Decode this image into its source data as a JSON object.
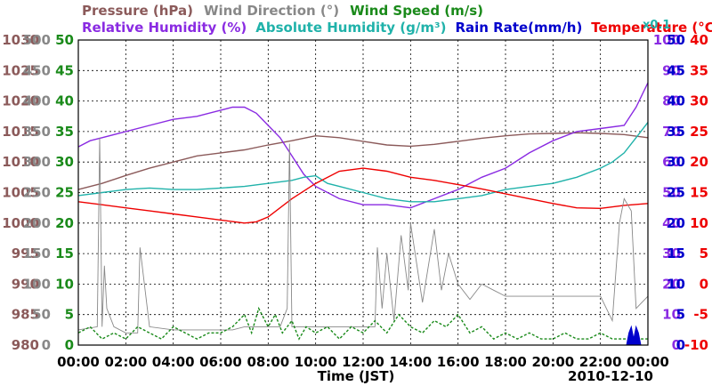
{
  "chart_data": {
    "type": "line",
    "xlabel": "Time (JST)",
    "date_label": "2010-12-10",
    "x_ticks": [
      "00:00",
      "02:00",
      "04:00",
      "06:00",
      "08:00",
      "10:00",
      "12:00",
      "14:00",
      "16:00",
      "18:00",
      "20:00",
      "22:00",
      "00:00"
    ],
    "grid": true,
    "axes": [
      {
        "name": "Pressure (hPa)",
        "side": "left",
        "color": "#8B5A5A",
        "range": [
          980,
          1030
        ],
        "ticks": [
          "980",
          "985",
          "990",
          "995",
          "1000",
          "1005",
          "1010",
          "1015",
          "1020",
          "1025",
          "1030"
        ]
      },
      {
        "name": "Wind Direction (°)",
        "side": "left",
        "color": "#888888",
        "range": [
          0,
          500
        ],
        "ticks": [
          "0",
          "50",
          "100",
          "150",
          "200",
          "250",
          "300",
          "350",
          "400",
          "450",
          "500"
        ]
      },
      {
        "name": "Wind Speed (m/s)",
        "side": "left",
        "color": "#1A8A1A",
        "range": [
          0,
          50
        ],
        "ticks": [
          "0",
          "5",
          "10",
          "15",
          "20",
          "25",
          "30",
          "35",
          "40",
          "45",
          "50"
        ]
      },
      {
        "name": "Relative Humidity (%)",
        "side": "right",
        "color": "#8A2BE2",
        "range": [
          0,
          100
        ],
        "ticks": [
          "0",
          "10",
          "20",
          "30",
          "40",
          "50",
          "60",
          "70",
          "80",
          "90",
          "100"
        ]
      },
      {
        "name": "Rain Rate(mm/h)",
        "side": "right",
        "color": "#0000CC",
        "range": [
          0,
          50
        ],
        "ticks": [
          "0",
          "5",
          "10",
          "15",
          "20",
          "25",
          "30",
          "35",
          "40",
          "45",
          "50"
        ]
      },
      {
        "name": "Temperature (°C)",
        "side": "right",
        "color": "#EE0000",
        "range": [
          -10,
          40
        ],
        "ticks": [
          "-10",
          "-5",
          "0",
          "5",
          "10",
          "15",
          "20",
          "25",
          "30",
          "35",
          "40"
        ]
      }
    ],
    "legend_row1": [
      {
        "label": "Pressure (hPa)",
        "color": "#8B5A5A"
      },
      {
        "label": "Wind Direction (°)",
        "color": "#888888"
      },
      {
        "label": "Wind Speed (m/s)",
        "color": "#1A8A1A"
      }
    ],
    "legend_row2": [
      {
        "label": "Relative Humidity (%)",
        "color": "#8A2BE2"
      },
      {
        "label": "Absolute Humidity (g/m³)",
        "color": "#20B2AA"
      },
      {
        "label": "Rain Rate(mm/h)",
        "color": "#0000CC"
      },
      {
        "label": "Temperature (°C)",
        "color": "#EE0000"
      }
    ],
    "abs_humidity_scale": "x0.1",
    "series": [
      {
        "name": "Pressure (hPa)",
        "axis": 0,
        "color": "#8B5A5A",
        "x": [
          0,
          1,
          2,
          3,
          4,
          5,
          6,
          7,
          8,
          9,
          10,
          11,
          12,
          13,
          14,
          15,
          16,
          17,
          18,
          19,
          20,
          21,
          22,
          23,
          24
        ],
        "y": [
          1005.5,
          1006.5,
          1007.8,
          1009,
          1010,
          1011,
          1011.5,
          1012,
          1012.8,
          1013.5,
          1014.3,
          1014,
          1013.4,
          1012.8,
          1012.6,
          1012.9,
          1013.4,
          1013.9,
          1014.3,
          1014.6,
          1014.7,
          1014.8,
          1014.7,
          1014.5,
          1014.0
        ]
      },
      {
        "name": "Relative Humidity (%)",
        "axis": 3,
        "color": "#8A2BE2",
        "x": [
          0,
          0.5,
          1,
          2,
          3,
          4,
          5,
          6,
          6.5,
          7,
          7.5,
          8,
          8.5,
          9,
          9.5,
          10,
          11,
          12,
          13,
          14,
          15,
          16,
          17,
          18,
          19,
          20,
          21,
          22,
          23,
          23.5,
          24
        ],
        "y": [
          65,
          67,
          68,
          70,
          72,
          74,
          75,
          77,
          78,
          78,
          76,
          72,
          68,
          62,
          56,
          52,
          48,
          46,
          46,
          45,
          48,
          51,
          55,
          58,
          63,
          67,
          70,
          71,
          72,
          78,
          86
        ]
      },
      {
        "name": "Absolute Humidity (g/m³)",
        "axis": 3,
        "color": "#20B2AA",
        "x": [
          0,
          1,
          2,
          3,
          4,
          5,
          6,
          7,
          8,
          9,
          9.5,
          10,
          10.5,
          11,
          12,
          13,
          14,
          15,
          16,
          17,
          18,
          19,
          20,
          21,
          22,
          22.5,
          23,
          23.5,
          24
        ],
        "y": [
          49,
          50,
          51,
          51.5,
          51,
          51,
          51.5,
          52,
          53,
          54,
          55,
          55.5,
          53,
          52,
          50,
          48,
          47,
          47,
          48,
          49,
          51,
          52,
          53,
          55,
          58,
          60,
          63,
          68,
          73
        ]
      },
      {
        "name": "Temperature (°C)",
        "axis": 5,
        "color": "#EE0000",
        "x": [
          0,
          1,
          2,
          3,
          4,
          5,
          6,
          7,
          7.5,
          8,
          9,
          10,
          11,
          12,
          13,
          14,
          15,
          16,
          17,
          18,
          19,
          20,
          21,
          22,
          23,
          24
        ],
        "y": [
          13.5,
          13,
          12.5,
          12,
          11.5,
          11,
          10.5,
          10,
          10.2,
          11,
          14,
          16.5,
          18.5,
          19,
          18.5,
          17.5,
          17,
          16.3,
          15.6,
          14.8,
          14,
          13.2,
          12.5,
          12.4,
          12.9,
          13.2
        ]
      },
      {
        "name": "Wind Direction (°)",
        "axis": 1,
        "color": "#888888",
        "x": [
          0,
          0.8,
          0.9,
          1.0,
          1.1,
          1.2,
          1.5,
          2,
          2.5,
          2.6,
          3,
          4,
          5,
          6,
          6.5,
          7,
          7.5,
          8,
          8.5,
          8.8,
          8.9,
          9.0,
          9.1,
          10,
          11,
          12,
          12.5,
          12.6,
          12.8,
          13,
          13.3,
          13.6,
          13.9,
          14,
          14.5,
          15,
          15.3,
          15.6,
          16,
          16.5,
          17,
          17.5,
          18,
          19,
          20,
          21,
          22,
          22.5,
          22.8,
          23,
          23.3,
          23.5,
          24
        ],
        "y": [
          25,
          30,
          340,
          30,
          130,
          60,
          30,
          20,
          20,
          160,
          30,
          25,
          25,
          25,
          25,
          30,
          30,
          30,
          30,
          60,
          330,
          30,
          30,
          30,
          30,
          30,
          30,
          160,
          60,
          150,
          40,
          180,
          90,
          200,
          70,
          190,
          90,
          150,
          100,
          75,
          100,
          90,
          80,
          80,
          80,
          80,
          80,
          40,
          200,
          240,
          220,
          60,
          80
        ]
      },
      {
        "name": "Wind Speed (m/s)",
        "axis": 2,
        "color": "#1A8A1A",
        "x": [
          0,
          0.5,
          1,
          1.5,
          2,
          2.5,
          3,
          3.5,
          4,
          4.5,
          5,
          5.5,
          6,
          6.5,
          7,
          7.3,
          7.6,
          8,
          8.3,
          8.6,
          9,
          9.3,
          9.6,
          10,
          10.5,
          11,
          11.5,
          12,
          12.5,
          13,
          13.5,
          14,
          14.5,
          15,
          15.5,
          16,
          16.5,
          17,
          17.5,
          18,
          18.5,
          19,
          19.5,
          20,
          20.5,
          21,
          21.5,
          22,
          22.5,
          23,
          23.5,
          24
        ],
        "y": [
          2,
          3,
          1,
          2,
          1,
          3,
          2,
          1,
          3,
          2,
          1,
          2,
          2,
          3,
          5,
          2,
          6,
          3,
          5,
          2,
          4,
          1,
          3,
          2,
          3,
          1,
          3,
          2,
          4,
          2,
          5,
          3,
          2,
          4,
          3,
          5,
          2,
          3,
          1,
          2,
          1,
          2,
          1,
          1,
          2,
          1,
          1,
          2,
          1,
          1,
          1,
          1
        ]
      },
      {
        "name": "Rain Rate(mm/h)",
        "axis": 4,
        "color": "#0000CC",
        "x": [
          0,
          23.0,
          23.1,
          23.2,
          23.3,
          23.4,
          23.5,
          23.6,
          23.7,
          23.8,
          24
        ],
        "y": [
          0,
          0,
          0,
          2,
          3,
          1,
          3,
          2,
          0,
          0,
          0
        ]
      }
    ]
  }
}
